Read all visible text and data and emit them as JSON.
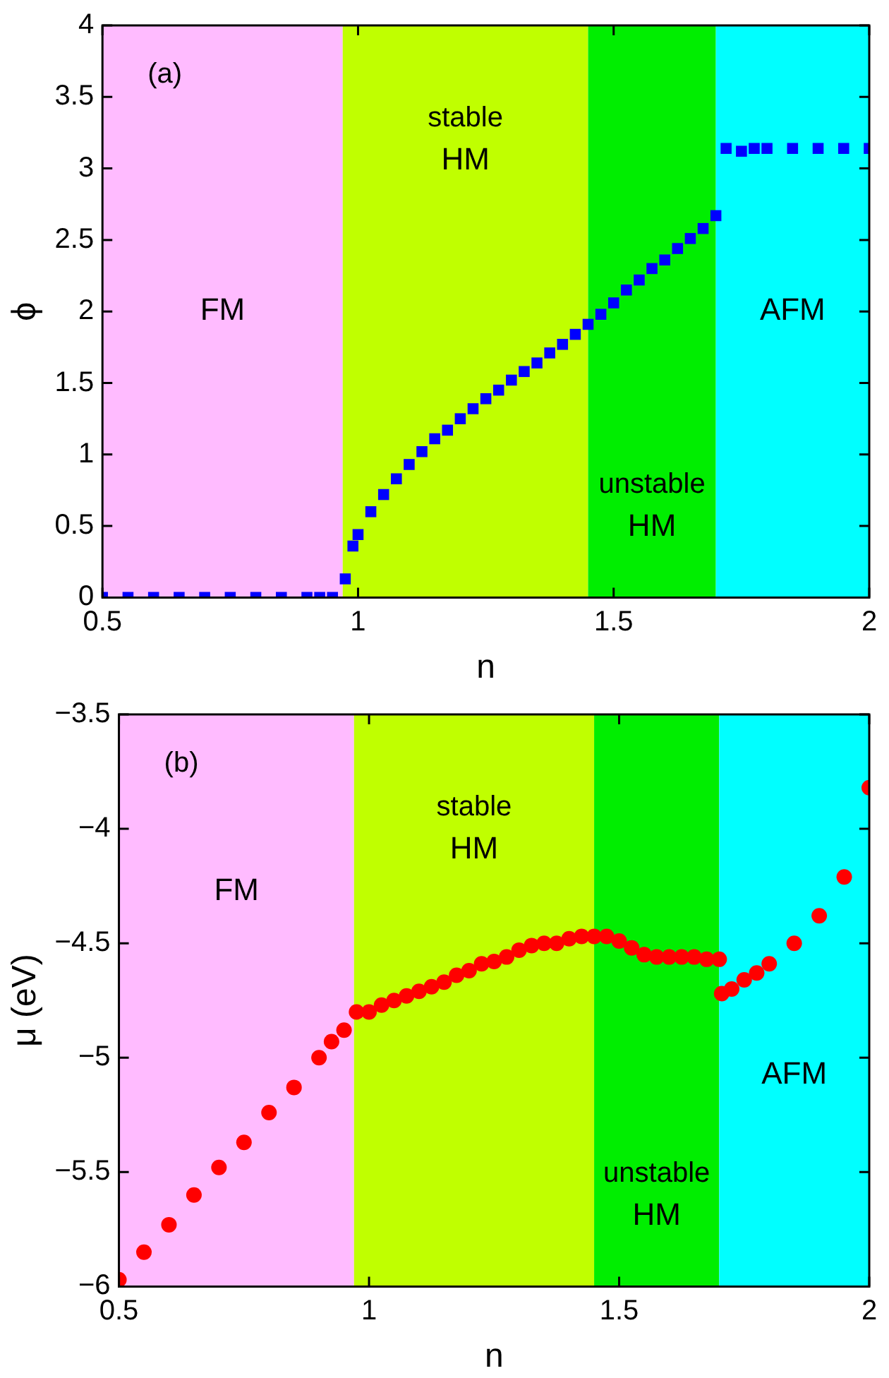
{
  "chart_data": [
    {
      "type": "scatter",
      "xlabel": "n",
      "ylabel": "ϕ",
      "marker": "square",
      "annotations": [
        "(a)"
      ],
      "xlim": [
        0.5,
        2
      ],
      "xticks": [
        0.5,
        1,
        1.5,
        2
      ],
      "ylim": [
        0,
        4
      ],
      "yticks": [
        0,
        0.5,
        1,
        1.5,
        2,
        2.5,
        3,
        3.5,
        4
      ],
      "bands": [
        {
          "axis": "x",
          "from": 0.5,
          "to": 0.97,
          "label": "FM",
          "color": "#ffbbff"
        },
        {
          "axis": "x",
          "from": 0.97,
          "to": 1.45,
          "label": "stable HM",
          "color": "#c0ff00"
        },
        {
          "axis": "x",
          "from": 1.45,
          "to": 1.7,
          "label": "unstable HM",
          "color": "#00ee00"
        },
        {
          "axis": "x",
          "from": 1.7,
          "to": 2,
          "label": "AFM",
          "color": "#00ffff"
        }
      ],
      "series": [
        {
          "color": "#0000ff",
          "x": [
            0.5,
            0.55,
            0.6,
            0.65,
            0.7,
            0.75,
            0.8,
            0.85,
            0.9,
            0.925,
            0.95,
            0.975,
            0.99,
            1.0,
            1.025,
            1.05,
            1.075,
            1.1,
            1.125,
            1.15,
            1.175,
            1.2,
            1.225,
            1.25,
            1.275,
            1.3,
            1.325,
            1.35,
            1.375,
            1.4,
            1.425,
            1.45,
            1.475,
            1.5,
            1.525,
            1.55,
            1.575,
            1.6,
            1.625,
            1.65,
            1.675,
            1.7,
            1.72,
            1.75,
            1.775,
            1.8,
            1.85,
            1.9,
            1.95,
            2.0
          ],
          "values": [
            0,
            0,
            0,
            0,
            0,
            0,
            0,
            0,
            0,
            0,
            0,
            0.13,
            0.36,
            0.44,
            0.6,
            0.72,
            0.83,
            0.93,
            1.02,
            1.11,
            1.17,
            1.25,
            1.32,
            1.39,
            1.45,
            1.52,
            1.58,
            1.64,
            1.71,
            1.77,
            1.84,
            1.91,
            1.98,
            2.06,
            2.15,
            2.22,
            2.3,
            2.36,
            2.44,
            2.51,
            2.58,
            2.67,
            3.14,
            3.12,
            3.14,
            3.14,
            3.14,
            3.14,
            3.14,
            3.14
          ]
        }
      ]
    },
    {
      "type": "scatter",
      "xlabel": "n",
      "ylabel": "μ (eV)",
      "marker": "circle",
      "annotations": [
        "(b)"
      ],
      "xlim": [
        0.5,
        2
      ],
      "xticks": [
        0.5,
        1,
        1.5,
        2
      ],
      "ylim": [
        -6,
        -3.5
      ],
      "yticks": [
        {
          "value": -6,
          "label": "−6"
        },
        {
          "value": -5.5,
          "label": "−5.5"
        },
        {
          "value": -5,
          "label": "−5"
        },
        {
          "value": -4.5,
          "label": "−4.5"
        },
        {
          "value": -4,
          "label": "−4"
        },
        {
          "value": -3.5,
          "label": "−3.5"
        }
      ],
      "bands": [
        {
          "axis": "x",
          "from": 0.5,
          "to": 0.97,
          "label": "FM",
          "color": "#ffbbff"
        },
        {
          "axis": "x",
          "from": 0.97,
          "to": 1.45,
          "label": "stable HM",
          "color": "#c0ff00"
        },
        {
          "axis": "x",
          "from": 1.45,
          "to": 1.7,
          "label": "unstable HM",
          "color": "#00ee00"
        },
        {
          "axis": "x",
          "from": 1.7,
          "to": 2,
          "label": "AFM",
          "color": "#00ffff"
        }
      ],
      "series": [
        {
          "color": "#ff0000",
          "x": [
            0.5,
            0.55,
            0.6,
            0.65,
            0.7,
            0.75,
            0.8,
            0.85,
            0.9,
            0.925,
            0.95,
            0.975,
            1.0,
            1.025,
            1.05,
            1.075,
            1.1,
            1.125,
            1.15,
            1.175,
            1.2,
            1.225,
            1.25,
            1.275,
            1.3,
            1.325,
            1.35,
            1.375,
            1.4,
            1.425,
            1.45,
            1.475,
            1.5,
            1.525,
            1.55,
            1.575,
            1.6,
            1.625,
            1.65,
            1.675,
            1.7,
            1.705,
            1.725,
            1.75,
            1.775,
            1.8,
            1.85,
            1.9,
            1.95,
            2.0
          ],
          "values": [
            -5.97,
            -5.85,
            -5.73,
            -5.6,
            -5.48,
            -5.37,
            -5.24,
            -5.13,
            -5.0,
            -4.93,
            -4.88,
            -4.8,
            -4.8,
            -4.77,
            -4.75,
            -4.73,
            -4.71,
            -4.69,
            -4.67,
            -4.64,
            -4.62,
            -4.59,
            -4.58,
            -4.56,
            -4.53,
            -4.51,
            -4.5,
            -4.5,
            -4.48,
            -4.47,
            -4.47,
            -4.47,
            -4.49,
            -4.52,
            -4.55,
            -4.56,
            -4.56,
            -4.56,
            -4.56,
            -4.57,
            -4.57,
            -4.72,
            -4.7,
            -4.66,
            -4.63,
            -4.59,
            -4.5,
            -4.38,
            -4.21,
            -3.82
          ]
        }
      ]
    }
  ]
}
